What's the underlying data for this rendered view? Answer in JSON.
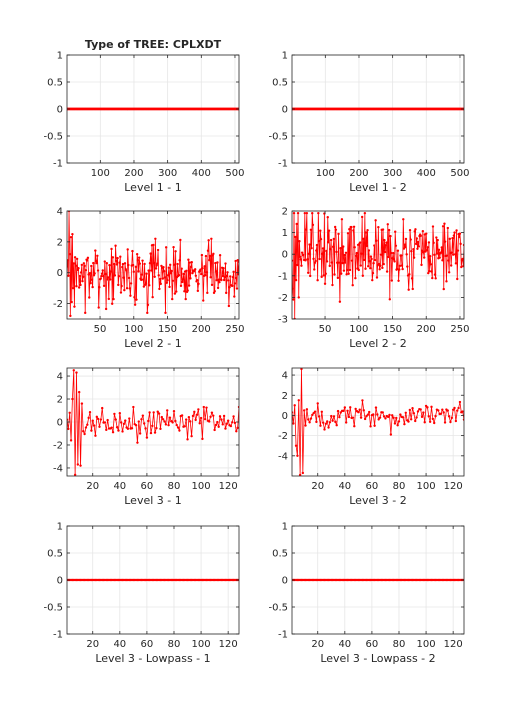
{
  "figure_title": "Type of TREE: CPLXDT",
  "line_color": "#ff0000",
  "chart_data": [
    {
      "type": "line",
      "xlabel": "Level 1 - 1",
      "xlim": [
        1,
        512
      ],
      "ylim": [
        -1,
        1
      ],
      "xticks": [
        100,
        200,
        300,
        400,
        500
      ],
      "yticks": [
        -1,
        -0.5,
        0,
        0.5,
        1
      ],
      "grid": true,
      "series": [
        {
          "kind": "constant",
          "n": 512,
          "value": 0
        }
      ]
    },
    {
      "type": "line",
      "xlabel": "Level 1 - 2",
      "xlim": [
        1,
        512
      ],
      "ylim": [
        -1,
        1
      ],
      "xticks": [
        100,
        200,
        300,
        400,
        500
      ],
      "yticks": [
        -1,
        -0.5,
        0,
        0.5,
        1
      ],
      "grid": true,
      "series": [
        {
          "kind": "constant",
          "n": 512,
          "value": 0
        }
      ]
    },
    {
      "type": "line",
      "xlabel": "Level 2 - 1",
      "xlim": [
        1,
        256
      ],
      "ylim": [
        -3,
        4
      ],
      "xticks": [
        50,
        100,
        150,
        200,
        250
      ],
      "yticks": [
        -2,
        0,
        2,
        4
      ],
      "grid": true,
      "series": [
        {
          "kind": "noise",
          "n": 256,
          "seed": 7,
          "head": [
            0.4,
            0.8,
            -0.2,
            4.0,
            1.2,
            -2.8,
            2.3,
            -1.9,
            2.5,
            -1.0,
            0.6,
            -2.2,
            1.0
          ],
          "amp": 0.85,
          "ymin": -2.6,
          "ymax": 2.2
        }
      ]
    },
    {
      "type": "line",
      "xlabel": "Level 2 - 2",
      "xlim": [
        1,
        256
      ],
      "ylim": [
        -3,
        2
      ],
      "xticks": [
        50,
        100,
        150,
        200,
        250
      ],
      "yticks": [
        -3,
        -2,
        -1,
        0,
        1,
        2
      ],
      "grid": true,
      "series": [
        {
          "kind": "noise",
          "n": 256,
          "seed": 13,
          "head": [
            -0.3,
            -1.6,
            -2.1,
            1.9,
            -3.0,
            0.8,
            -1.2,
            1.4,
            -0.5,
            1.9,
            -2.0,
            0.6
          ],
          "amp": 0.75,
          "ymin": -2.2,
          "ymax": 1.9
        }
      ]
    },
    {
      "type": "line",
      "xlabel": "Level 3 - 1",
      "xlim": [
        1,
        128
      ],
      "ylim": [
        -4.7,
        4.7
      ],
      "xticks": [
        20,
        40,
        60,
        80,
        100,
        120
      ],
      "yticks": [
        -4,
        -2,
        0,
        2,
        4
      ],
      "grid": true,
      "series": [
        {
          "kind": "noise",
          "n": 128,
          "seed": 21,
          "head": [
            0.2,
            -0.6,
            0.8,
            -1.6,
            2.0,
            4.5,
            -4.6,
            4.3,
            -3.7,
            2.6,
            -3.8,
            1.6,
            -0.8
          ],
          "amp": 0.6,
          "ymin": -1.8,
          "ymax": 1.3
        }
      ]
    },
    {
      "type": "line",
      "xlabel": "Level 3 - 2",
      "xlim": [
        1,
        128
      ],
      "ylim": [
        -6,
        4.7
      ],
      "xticks": [
        20,
        40,
        60,
        80,
        100,
        120
      ],
      "yticks": [
        -4,
        -2,
        0,
        2,
        4
      ],
      "grid": true,
      "series": [
        {
          "kind": "noise",
          "n": 128,
          "seed": 33,
          "head": [
            0.3,
            -0.8,
            1.0,
            -3.0,
            -4.0,
            1.5,
            -5.9,
            4.6,
            -5.7,
            0.5,
            -1.0,
            0.6,
            -0.4
          ],
          "amp": 0.6,
          "ymin": -2.0,
          "ymax": 1.8
        }
      ]
    },
    {
      "type": "line",
      "xlabel": "Level 3 - Lowpass - 1",
      "xlim": [
        1,
        128
      ],
      "ylim": [
        -1,
        1
      ],
      "xticks": [
        20,
        40,
        60,
        80,
        100,
        120
      ],
      "yticks": [
        -1,
        -0.5,
        0,
        0.5,
        1
      ],
      "grid": true,
      "series": [
        {
          "kind": "constant",
          "n": 128,
          "value": 0
        }
      ]
    },
    {
      "type": "line",
      "xlabel": "Level 3 - Lowpass - 2",
      "xlim": [
        1,
        128
      ],
      "ylim": [
        -1,
        1
      ],
      "xticks": [
        20,
        40,
        60,
        80,
        100,
        120
      ],
      "yticks": [
        -1,
        -0.5,
        0,
        0.5,
        1
      ],
      "grid": true,
      "series": [
        {
          "kind": "constant",
          "n": 128,
          "value": 0
        }
      ]
    }
  ]
}
